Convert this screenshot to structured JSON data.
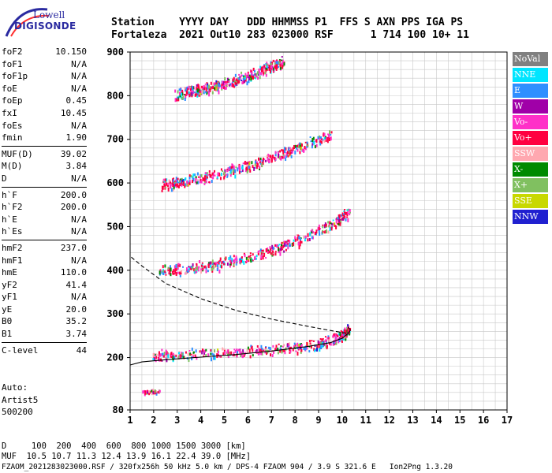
{
  "logo": {
    "line1": "Lowell",
    "line2": "DIGISONDE"
  },
  "header": {
    "line1": "Station    YYYY DAY   DDD HHMMSS P1  FFS S AXN PPS IGA PS",
    "line2": "Fortaleza  2021 Out10 283 023000 RSF      1 714 100 10+ 11"
  },
  "params": [
    [
      {
        "k": "foF2",
        "v": "10.150"
      },
      {
        "k": "foF1",
        "v": "N/A"
      },
      {
        "k": "foF1p",
        "v": "N/A"
      },
      {
        "k": "foE",
        "v": "N/A"
      },
      {
        "k": "foEp",
        "v": "0.45"
      },
      {
        "k": "fxI",
        "v": "10.45"
      },
      {
        "k": "foEs",
        "v": "N/A"
      },
      {
        "k": "fmin",
        "v": "1.90"
      }
    ],
    [
      {
        "k": "MUF(D)",
        "v": "39.02"
      },
      {
        "k": "M(D)",
        "v": "3.84"
      },
      {
        "k": "D",
        "v": "N/A"
      }
    ],
    [
      {
        "k": "h`F",
        "v": "200.0"
      },
      {
        "k": "h`F2",
        "v": "200.0"
      },
      {
        "k": "h`E",
        "v": "N/A"
      },
      {
        "k": "h`Es",
        "v": "N/A"
      }
    ],
    [
      {
        "k": "hmF2",
        "v": "237.0"
      },
      {
        "k": "hmF1",
        "v": "N/A"
      },
      {
        "k": "hmE",
        "v": "110.0"
      },
      {
        "k": "yF2",
        "v": "41.4"
      },
      {
        "k": "yF1",
        "v": "N/A"
      },
      {
        "k": "yE",
        "v": "20.0"
      },
      {
        "k": "B0",
        "v": "35.2"
      },
      {
        "k": "B1",
        "v": "3.74"
      }
    ],
    [
      {
        "k": "C-level",
        "v": "44"
      }
    ]
  ],
  "auto": {
    "line1": "Auto:",
    "line2": "Artist5",
    "line3": "500200"
  },
  "legend": [
    {
      "label": "NoVal",
      "color": "#808080"
    },
    {
      "label": "NNE",
      "color": "#00e5ff"
    },
    {
      "label": "E",
      "color": "#2f8fff"
    },
    {
      "label": "W",
      "color": "#a000a8"
    },
    {
      "label": "Vo-",
      "color": "#ff30c8"
    },
    {
      "label": "Vo+",
      "color": "#ff0040"
    },
    {
      "label": "SSW",
      "color": "#ffa8b0"
    },
    {
      "label": "X-",
      "color": "#008a00"
    },
    {
      "label": "X+",
      "color": "#80c060"
    },
    {
      "label": "SSE",
      "color": "#c8d800"
    },
    {
      "label": "NNW",
      "color": "#2020d0"
    }
  ],
  "footer": {
    "line1": "D     100  200  400  600  800 1000 1500 3000 [km]",
    "line2": "MUF  10.5 10.7 11.3 12.4 13.9 16.1 22.4 39.0 [MHz]",
    "line3": "FZAOM_2021283023000.RSF / 320fx256h 50 kHz 5.0 km / DPS-4 FZAOM 904 / 3.9 S 321.6 E   Ion2Png 1.3.20"
  },
  "chart_data": {
    "type": "scatter",
    "xlim": [
      1,
      17
    ],
    "ylim": [
      80,
      900
    ],
    "xticks": [
      1,
      2,
      3,
      4,
      5,
      6,
      7,
      8,
      9,
      10,
      11,
      12,
      13,
      14,
      15,
      16,
      17
    ],
    "yticks": [
      80,
      200,
      300,
      400,
      500,
      600,
      700,
      800,
      900
    ],
    "traces": [
      {
        "name": "F-echo",
        "band": 20,
        "pts": [
          [
            1.95,
            205
          ],
          [
            3,
            208
          ],
          [
            4.5,
            212
          ],
          [
            6,
            216
          ],
          [
            7.5,
            222
          ],
          [
            9,
            232
          ],
          [
            10,
            252
          ],
          [
            10.3,
            270
          ]
        ]
      },
      {
        "name": "F-2hop",
        "band": 22,
        "pts": [
          [
            2.2,
            398
          ],
          [
            3.5,
            405
          ],
          [
            5,
            418
          ],
          [
            6.5,
            438
          ],
          [
            8,
            468
          ],
          [
            9.5,
            505
          ],
          [
            10.3,
            535
          ]
        ]
      },
      {
        "name": "F-3hop",
        "band": 22,
        "pts": [
          [
            2.3,
            598
          ],
          [
            3.5,
            608
          ],
          [
            5,
            625
          ],
          [
            6.5,
            650
          ],
          [
            8,
            680
          ],
          [
            9.5,
            715
          ]
        ]
      },
      {
        "name": "F-4hop",
        "band": 22,
        "pts": [
          [
            2.9,
            805
          ],
          [
            4,
            815
          ],
          [
            5,
            828
          ],
          [
            6.5,
            858
          ],
          [
            7.5,
            882
          ]
        ]
      },
      {
        "name": "Es-low",
        "band": 8,
        "pts": [
          [
            1.45,
            122
          ],
          [
            2.35,
            125
          ]
        ]
      }
    ],
    "profile_solid": [
      [
        1,
        183
      ],
      [
        1.5,
        190
      ],
      [
        2.5,
        195
      ],
      [
        4,
        201
      ],
      [
        5.5,
        207
      ],
      [
        7,
        215
      ],
      [
        8.5,
        225
      ],
      [
        9.5,
        234
      ],
      [
        10,
        244
      ],
      [
        10.25,
        255
      ],
      [
        10.35,
        263
      ],
      [
        10.25,
        270
      ]
    ],
    "profile_dashed": [
      [
        1.05,
        430
      ],
      [
        1.5,
        410
      ],
      [
        2.5,
        370
      ],
      [
        4,
        335
      ],
      [
        5.5,
        308
      ],
      [
        7,
        288
      ],
      [
        8.5,
        272
      ],
      [
        9.5,
        262
      ],
      [
        10.25,
        255
      ]
    ]
  }
}
